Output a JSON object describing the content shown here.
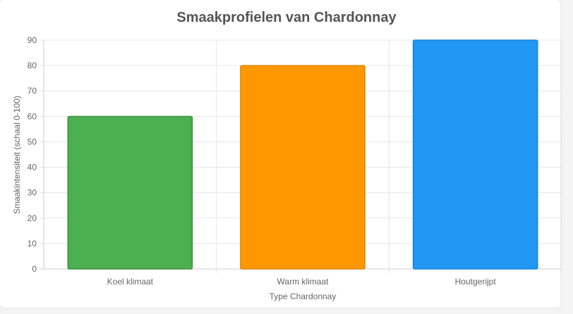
{
  "chart_data": {
    "type": "bar",
    "title": "Smaakprofielen van Chardonnay",
    "xlabel": "Type Chardonnay",
    "ylabel": "Smaakintensiteit (schaal 0-100)",
    "categories": [
      "Koel klimaat",
      "Warm klimaat",
      "Houtgerijpt"
    ],
    "values": [
      60,
      80,
      90
    ],
    "colors": [
      "#4caf50",
      "#ff9800",
      "#2196f3"
    ],
    "border_colors": [
      "#3d9140",
      "#e08600",
      "#1a86db"
    ],
    "ylim": [
      0,
      90
    ],
    "yticks": [
      0,
      10,
      20,
      30,
      40,
      50,
      60,
      70,
      80,
      90
    ],
    "grid": true,
    "legend": "none"
  }
}
